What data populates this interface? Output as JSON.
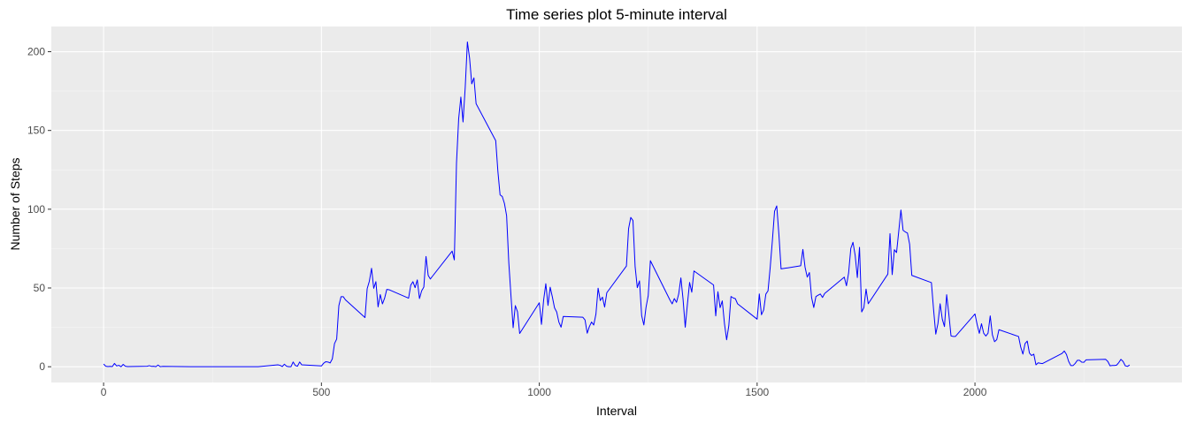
{
  "chart_data": {
    "type": "line",
    "title": "Time series plot 5-minute interval",
    "xlabel": "Interval",
    "ylabel": "Number of Steps",
    "xlim": [
      -120,
      2475
    ],
    "ylim": [
      -10,
      216
    ],
    "x_ticks": [
      0,
      500,
      1000,
      1500,
      2000
    ],
    "y_ticks": [
      0,
      50,
      100,
      150,
      200
    ],
    "x_tick_labels": [
      "0",
      "500",
      "1000",
      "1500",
      "2000"
    ],
    "y_tick_labels": [
      "0",
      "50",
      "100",
      "150",
      "200"
    ],
    "grid": true,
    "legend": "none",
    "colors": {
      "panel_background": "#ebebeb",
      "grid_major": "#ffffff",
      "grid_minor": "#f5f5f5",
      "line": "#0000ff",
      "tick_label": "#4d4d4d",
      "tick_mark": "#333333"
    },
    "series": [
      {
        "x": [
          0,
          5,
          10,
          15,
          20,
          25,
          30,
          35,
          40,
          45,
          50,
          55,
          100,
          105,
          110,
          115,
          120,
          125,
          130,
          135,
          200,
          205,
          210,
          215,
          220,
          225,
          230,
          235,
          240,
          245,
          250,
          255,
          300,
          305,
          310,
          315,
          320,
          325,
          330,
          335,
          340,
          345,
          350,
          355,
          400,
          405,
          410,
          415,
          420,
          425,
          430,
          435,
          440,
          445,
          450,
          455,
          500,
          505,
          510,
          515,
          520,
          525,
          530,
          535,
          540,
          545,
          550,
          555,
          600,
          605,
          610,
          615,
          620,
          625,
          630,
          635,
          640,
          645,
          650,
          655,
          700,
          705,
          710,
          715,
          720,
          725,
          730,
          735,
          740,
          745,
          750,
          755,
          800,
          805,
          810,
          815,
          820,
          825,
          830,
          835,
          840,
          845,
          850,
          855,
          900,
          905,
          910,
          915,
          920,
          925,
          930,
          935,
          940,
          945,
          950,
          955,
          1000,
          1005,
          1010,
          1015,
          1020,
          1025,
          1030,
          1035,
          1040,
          1045,
          1050,
          1055,
          1100,
          1105,
          1110,
          1115,
          1120,
          1125,
          1130,
          1135,
          1140,
          1145,
          1150,
          1155,
          1200,
          1205,
          1210,
          1215,
          1220,
          1225,
          1230,
          1235,
          1240,
          1245,
          1250,
          1255,
          1300,
          1305,
          1310,
          1315,
          1320,
          1325,
          1330,
          1335,
          1340,
          1345,
          1350,
          1355,
          1400,
          1405,
          1410,
          1415,
          1420,
          1425,
          1430,
          1435,
          1440,
          1445,
          1450,
          1455,
          1500,
          1505,
          1510,
          1515,
          1520,
          1525,
          1530,
          1535,
          1540,
          1545,
          1550,
          1555,
          1600,
          1605,
          1610,
          1615,
          1620,
          1625,
          1630,
          1635,
          1640,
          1645,
          1650,
          1655,
          1700,
          1705,
          1710,
          1715,
          1720,
          1725,
          1730,
          1735,
          1740,
          1745,
          1750,
          1755,
          1800,
          1805,
          1810,
          1815,
          1820,
          1825,
          1830,
          1835,
          1840,
          1845,
          1850,
          1855,
          1900,
          1905,
          1910,
          1915,
          1920,
          1925,
          1930,
          1935,
          1940,
          1945,
          1950,
          1955,
          2000,
          2005,
          2010,
          2015,
          2020,
          2025,
          2030,
          2035,
          2040,
          2045,
          2050,
          2055,
          2100,
          2105,
          2110,
          2115,
          2120,
          2125,
          2130,
          2135,
          2140,
          2145,
          2150,
          2155,
          2200,
          2205,
          2210,
          2215,
          2220,
          2225,
          2230,
          2235,
          2240,
          2245,
          2250,
          2255,
          2300,
          2305,
          2310,
          2315,
          2320,
          2325,
          2330,
          2335,
          2340,
          2345,
          2350,
          2355
        ],
        "y": [
          1.7,
          0.3,
          0.1,
          0.2,
          0.1,
          2.1,
          0.5,
          0.9,
          0.0,
          1.5,
          0.3,
          0.1,
          0.3,
          0.7,
          0.2,
          0.3,
          0.0,
          1.1,
          0.0,
          0.2,
          0.0,
          0.0,
          0.0,
          0.0,
          0.0,
          0.0,
          0.0,
          0.0,
          0.0,
          0.0,
          0.0,
          0.0,
          0.0,
          0.0,
          0.0,
          0.0,
          0.0,
          0.0,
          0.0,
          0.0,
          0.0,
          0.0,
          0.0,
          0.0,
          1.2,
          0.9,
          0.1,
          1.6,
          0.3,
          0.0,
          0.0,
          3.0,
          0.8,
          0.3,
          3.0,
          1.2,
          0.5,
          2.2,
          3.2,
          3.0,
          2.4,
          5.0,
          14.7,
          17.6,
          38.8,
          44.5,
          44.5,
          42.5,
          31.2,
          49.6,
          54.3,
          62.5,
          49.8,
          54.0,
          38.0,
          45.8,
          39.9,
          43.5,
          49.1,
          48.9,
          43.5,
          51.8,
          54.0,
          50.2,
          55.1,
          43.3,
          48.2,
          50.6,
          70.0,
          58.0,
          55.7,
          57.5,
          73.4,
          67.8,
          129.4,
          157.5,
          171.2,
          155.4,
          177.3,
          206.2,
          195.9,
          179.6,
          183.4,
          167.0,
          143.5,
          124.0,
          109.1,
          108.1,
          103.7,
          95.9,
          66.2,
          45.2,
          24.8,
          38.8,
          34.9,
          21.1,
          40.6,
          26.9,
          42.4,
          52.7,
          38.9,
          50.5,
          44.3,
          37.4,
          34.7,
          28.3,
          25.1,
          31.9,
          31.4,
          29.7,
          21.3,
          25.5,
          28.4,
          26.5,
          33.4,
          49.9,
          42.0,
          44.2,
          37.9,
          47.0,
          63.9,
          87.7,
          94.8,
          92.8,
          63.4,
          50.2,
          54.5,
          32.4,
          26.5,
          37.7,
          45.1,
          67.3,
          42.3,
          39.9,
          43.3,
          40.9,
          46.2,
          56.4,
          42.8,
          25.1,
          39.8,
          53.5,
          47.3,
          60.8,
          51.9,
          32.3,
          47.6,
          37.5,
          41.8,
          27.5,
          17.1,
          26.1,
          44.6,
          43.7,
          43.2,
          40.0,
          30.2,
          46.2,
          33.0,
          36.0,
          46.1,
          48.2,
          63.0,
          80.0,
          98.7,
          102.1,
          83.9,
          62.1,
          64.1,
          74.5,
          63.2,
          56.9,
          59.8,
          43.9,
          37.6,
          44.6,
          45.4,
          46.2,
          44.0,
          46.5,
          56.9,
          51.4,
          59.6,
          75.1,
          79.0,
          70.7,
          56.6,
          75.8,
          34.8,
          37.5,
          49.3,
          40.0,
          58.8,
          84.5,
          58.5,
          74.3,
          72.5,
          85.8,
          99.5,
          86.6,
          85.6,
          84.9,
          77.8,
          58.0,
          53.4,
          36.3,
          20.7,
          27.4,
          40.0,
          30.2,
          25.5,
          45.7,
          33.5,
          19.6,
          19.2,
          19.2,
          33.5,
          26.8,
          21.2,
          27.3,
          21.3,
          19.5,
          21.3,
          32.3,
          20.2,
          15.9,
          17.2,
          23.5,
          19.2,
          12.5,
          8.0,
          14.7,
          16.3,
          8.7,
          7.1,
          8.0,
          1.2,
          2.5,
          2.2,
          2.0,
          8.5,
          10.0,
          7.8,
          3.4,
          0.7,
          0.7,
          2.1,
          4.1,
          4.1,
          2.9,
          2.8,
          4.4,
          4.7,
          3.3,
          0.6,
          0.8,
          0.8,
          1.0,
          2.6,
          4.7,
          3.3,
          0.6,
          0.2,
          1.1
        ]
      }
    ]
  }
}
